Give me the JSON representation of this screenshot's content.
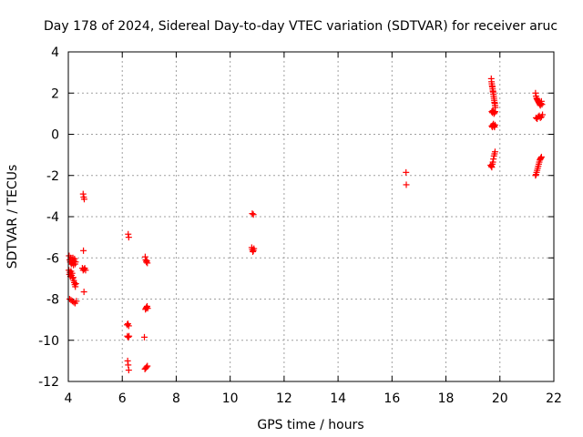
{
  "chart_data": {
    "type": "scatter",
    "title": "Day 178 of 2024, Sidereal Day-to-day VTEC variation (SDTVAR) for receiver aruc",
    "xlabel": "GPS time / hours",
    "ylabel": "SDTVAR / TECUs",
    "xlim": [
      4,
      22
    ],
    "ylim": [
      -12,
      4
    ],
    "xticks": [
      "4",
      "6",
      "8",
      "10",
      "12",
      "14",
      "16",
      "18",
      "20",
      "22"
    ],
    "yticks": [
      "4",
      "2",
      "0",
      "-2",
      "-4",
      "-6",
      "-8",
      "-10",
      "-12"
    ],
    "grid": true,
    "marker": "+",
    "color": "#ff0000",
    "series": [
      {
        "name": "SDTVAR",
        "points": [
          [
            4.03,
            -5.9
          ],
          [
            4.05,
            -6.1
          ],
          [
            4.07,
            -6.2
          ],
          [
            4.09,
            -6.0
          ],
          [
            4.11,
            -6.3
          ],
          [
            4.13,
            -6.1
          ],
          [
            4.15,
            -6.25
          ],
          [
            4.17,
            -6.0
          ],
          [
            4.19,
            -6.35
          ],
          [
            4.21,
            -6.15
          ],
          [
            4.23,
            -6.05
          ],
          [
            4.25,
            -6.3
          ],
          [
            4.27,
            -6.2
          ],
          [
            4.02,
            -6.6
          ],
          [
            4.04,
            -6.8
          ],
          [
            4.06,
            -6.7
          ],
          [
            4.08,
            -6.9
          ],
          [
            4.1,
            -6.65
          ],
          [
            4.12,
            -6.85
          ],
          [
            4.14,
            -6.75
          ],
          [
            4.16,
            -7.0
          ],
          [
            4.18,
            -6.95
          ],
          [
            4.2,
            -7.1
          ],
          [
            4.22,
            -7.2
          ],
          [
            4.24,
            -7.3
          ],
          [
            4.26,
            -7.4
          ],
          [
            4.28,
            -7.25
          ],
          [
            4.05,
            -8.0
          ],
          [
            4.1,
            -8.05
          ],
          [
            4.15,
            -8.1
          ],
          [
            4.2,
            -8.15
          ],
          [
            4.25,
            -8.2
          ],
          [
            4.3,
            -8.1
          ],
          [
            4.55,
            -2.9
          ],
          [
            4.57,
            -3.05
          ],
          [
            4.59,
            -3.15
          ],
          [
            4.56,
            -5.65
          ],
          [
            4.52,
            -6.5
          ],
          [
            4.55,
            -6.6
          ],
          [
            4.58,
            -6.55
          ],
          [
            4.61,
            -6.5
          ],
          [
            4.64,
            -6.6
          ],
          [
            4.58,
            -7.65
          ],
          [
            6.22,
            -4.85
          ],
          [
            6.24,
            -5.0
          ],
          [
            6.18,
            -9.25
          ],
          [
            6.21,
            -9.2
          ],
          [
            6.24,
            -9.3
          ],
          [
            6.19,
            -9.8
          ],
          [
            6.22,
            -9.85
          ],
          [
            6.25,
            -9.8
          ],
          [
            6.2,
            -11.0
          ],
          [
            6.22,
            -11.2
          ],
          [
            6.24,
            -11.45
          ],
          [
            6.85,
            -5.95
          ],
          [
            6.87,
            -6.1
          ],
          [
            6.89,
            -6.2
          ],
          [
            6.91,
            -6.15
          ],
          [
            6.93,
            -6.25
          ],
          [
            6.86,
            -8.5
          ],
          [
            6.88,
            -8.45
          ],
          [
            6.9,
            -8.4
          ],
          [
            6.92,
            -8.35
          ],
          [
            6.94,
            -8.45
          ],
          [
            6.82,
            -9.85
          ],
          [
            6.84,
            -11.4
          ],
          [
            6.87,
            -11.35
          ],
          [
            6.9,
            -11.3
          ],
          [
            6.93,
            -11.25
          ],
          [
            10.82,
            -3.85
          ],
          [
            10.86,
            -3.9
          ],
          [
            10.8,
            -5.5
          ],
          [
            10.82,
            -5.6
          ],
          [
            10.84,
            -5.7
          ],
          [
            10.86,
            -5.65
          ],
          [
            10.88,
            -5.55
          ],
          [
            16.52,
            -1.85
          ],
          [
            16.53,
            -2.45
          ],
          [
            19.68,
            2.7
          ],
          [
            19.69,
            2.55
          ],
          [
            19.7,
            2.45
          ],
          [
            19.71,
            2.35
          ],
          [
            19.72,
            2.3
          ],
          [
            19.73,
            2.2
          ],
          [
            19.74,
            2.1
          ],
          [
            19.75,
            2.05
          ],
          [
            19.76,
            1.95
          ],
          [
            19.77,
            1.85
          ],
          [
            19.78,
            1.75
          ],
          [
            19.79,
            1.65
          ],
          [
            19.8,
            1.55
          ],
          [
            19.81,
            1.5
          ],
          [
            19.82,
            1.4
          ],
          [
            19.83,
            1.3
          ],
          [
            19.7,
            1.1
          ],
          [
            19.72,
            1.05
          ],
          [
            19.74,
            1.15
          ],
          [
            19.76,
            1.1
          ],
          [
            19.78,
            1.0
          ],
          [
            19.8,
            1.05
          ],
          [
            19.82,
            1.1
          ],
          [
            19.7,
            0.4
          ],
          [
            19.72,
            0.35
          ],
          [
            19.74,
            0.45
          ],
          [
            19.76,
            0.5
          ],
          [
            19.78,
            0.4
          ],
          [
            19.8,
            0.35
          ],
          [
            19.82,
            0.45
          ],
          [
            19.66,
            -1.5
          ],
          [
            19.68,
            -1.55
          ],
          [
            19.7,
            -1.6
          ],
          [
            19.72,
            -1.45
          ],
          [
            19.74,
            -1.35
          ],
          [
            19.76,
            -1.2
          ],
          [
            19.78,
            -1.05
          ],
          [
            19.8,
            -0.95
          ],
          [
            19.82,
            -0.85
          ],
          [
            21.32,
            2.0
          ],
          [
            21.34,
            1.85
          ],
          [
            21.36,
            1.75
          ],
          [
            21.38,
            1.7
          ],
          [
            21.4,
            1.65
          ],
          [
            21.42,
            1.6
          ],
          [
            21.44,
            1.55
          ],
          [
            21.46,
            1.5
          ],
          [
            21.48,
            1.45
          ],
          [
            21.5,
            1.4
          ],
          [
            21.52,
            1.5
          ],
          [
            21.54,
            1.6
          ],
          [
            21.56,
            1.45
          ],
          [
            21.34,
            0.8
          ],
          [
            21.38,
            0.75
          ],
          [
            21.42,
            0.85
          ],
          [
            21.46,
            0.9
          ],
          [
            21.5,
            0.8
          ],
          [
            21.54,
            0.85
          ],
          [
            21.58,
            0.95
          ],
          [
            21.32,
            -2.0
          ],
          [
            21.34,
            -1.95
          ],
          [
            21.36,
            -1.85
          ],
          [
            21.38,
            -1.75
          ],
          [
            21.4,
            -1.65
          ],
          [
            21.42,
            -1.55
          ],
          [
            21.44,
            -1.45
          ],
          [
            21.46,
            -1.35
          ],
          [
            21.48,
            -1.25
          ],
          [
            21.5,
            -1.2
          ],
          [
            21.52,
            -1.15
          ],
          [
            21.54,
            -1.1
          ]
        ]
      }
    ]
  }
}
